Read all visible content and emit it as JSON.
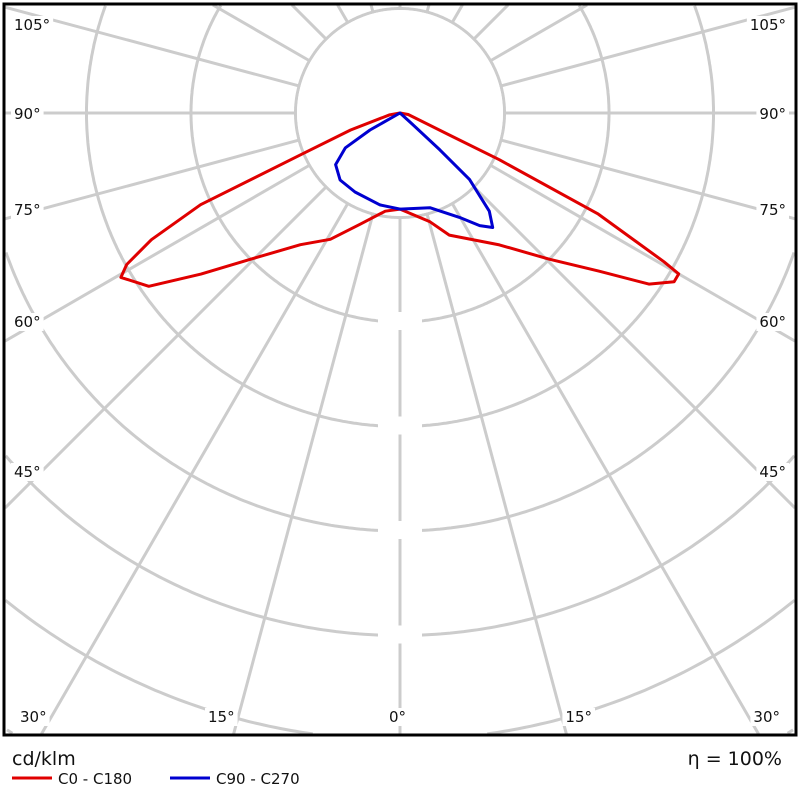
{
  "chart_data": {
    "type": "polar",
    "unit_label": "cd/klm",
    "efficiency_label": "η = 100%",
    "angle_labels_left": [
      "105°",
      "90°",
      "75°",
      "60°",
      "45°",
      "30°",
      "15°",
      "0°"
    ],
    "angle_labels_right": [
      "105°",
      "90°",
      "75°",
      "60°",
      "45°",
      "30°",
      "15°"
    ],
    "grid": true,
    "ring_step_note": "",
    "colors": {
      "grid": "#cccccc",
      "frame": "#000000"
    },
    "series": [
      {
        "name": "C0 - C180",
        "color": "#e00000",
        "points_gamma_r": [
          [
            0,
            0.92
          ],
          [
            15.4,
            1.08
          ],
          [
            22,
            1.26
          ],
          [
            37,
            1.58
          ],
          [
            45.6,
            2.0
          ],
          [
            51.5,
            2.43
          ],
          [
            55.5,
            2.89
          ],
          [
            58.4,
            3.08
          ],
          [
            60,
            3.08
          ],
          [
            60.6,
            2.9
          ],
          [
            63,
            2.13
          ],
          [
            64.8,
            1.05
          ],
          [
            66,
            0.52
          ],
          [
            80,
            0.08
          ],
          [
            180,
            0
          ],
          [
            -80,
            0.1
          ],
          [
            -71,
            0.5
          ],
          [
            -67.2,
            1.03
          ],
          [
            -65.3,
            2.1
          ],
          [
            -63,
            2.67
          ],
          [
            -61,
            2.99
          ],
          [
            -59.5,
            3.1
          ],
          [
            -55.4,
            2.92
          ],
          [
            -51,
            2.45
          ],
          [
            -45.6,
            2.0
          ],
          [
            -37.1,
            1.58
          ],
          [
            -28.9,
            1.38
          ],
          [
            -19.7,
            1.13
          ],
          [
            -8.6,
            0.95
          ],
          [
            0,
            0.92
          ]
        ]
      },
      {
        "name": "C90 - C270",
        "color": "#0000d0",
        "points_gamma_r": [
          [
            0,
            0.92
          ],
          [
            17.5,
            0.95
          ],
          [
            29.7,
            1.15
          ],
          [
            35.3,
            1.32
          ],
          [
            39,
            1.41
          ],
          [
            42.3,
            1.27
          ],
          [
            46.3,
            0.92
          ],
          [
            47.2,
            0.52
          ],
          [
            48,
            0.13
          ],
          [
            180,
            0
          ],
          [
            -60.5,
            0.33
          ],
          [
            -57.5,
            0.62
          ],
          [
            -51.3,
            0.79
          ],
          [
            -41.8,
            0.86
          ],
          [
            -29.7,
            0.87
          ],
          [
            -12.3,
            0.9
          ],
          [
            0,
            0.92
          ]
        ]
      }
    ]
  }
}
